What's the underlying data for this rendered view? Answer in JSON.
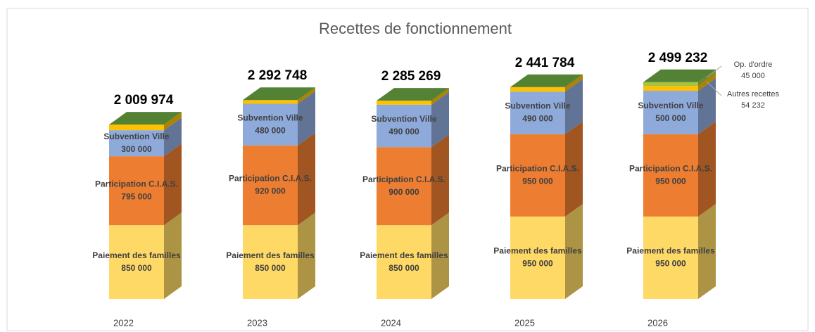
{
  "chart_data": {
    "type": "bar3d_stacked",
    "title": "Recettes de fonctionnement",
    "categories": [
      "2022",
      "2023",
      "2024",
      "2025",
      "2026"
    ],
    "series": [
      {
        "name": "Paiement des familles",
        "color": "#ffd966",
        "values": [
          850000,
          850000,
          850000,
          950000,
          950000
        ],
        "value_labels": [
          "850 000",
          "850 000",
          "850 000",
          "950 000",
          "950 000"
        ]
      },
      {
        "name": "Participation C.I.A.S.",
        "color": "#ed7d31",
        "values": [
          795000,
          920000,
          900000,
          950000,
          950000
        ],
        "value_labels": [
          "795 000",
          "920 000",
          "900 000",
          "950 000",
          "950 000"
        ]
      },
      {
        "name": "Subvention Ville",
        "color": "#8eaadb",
        "values": [
          300000,
          480000,
          490000,
          490000,
          500000
        ],
        "value_labels": [
          "300 000",
          "480 000",
          "490 000",
          "490 000",
          "500 000"
        ]
      },
      {
        "name": "Autres recettes",
        "color": "#ffc000",
        "values": [
          64974,
          42748,
          45269,
          51784,
          54232
        ],
        "value_labels": [
          null,
          null,
          null,
          null,
          "54 232"
        ]
      },
      {
        "name": "Op. d'ordre",
        "color": "#a9c23f",
        "values": [
          0,
          0,
          0,
          0,
          45000
        ],
        "value_labels": [
          null,
          null,
          null,
          null,
          "45 000"
        ]
      }
    ],
    "totals": [
      2009974,
      2292748,
      2285269,
      2441784,
      2499232
    ],
    "total_labels": [
      "2 009 974",
      "2 292 748",
      "2 285 269",
      "2 441 784",
      "2 499 232"
    ],
    "top_color": "#548235",
    "ylim": [
      0,
      3000000
    ]
  }
}
